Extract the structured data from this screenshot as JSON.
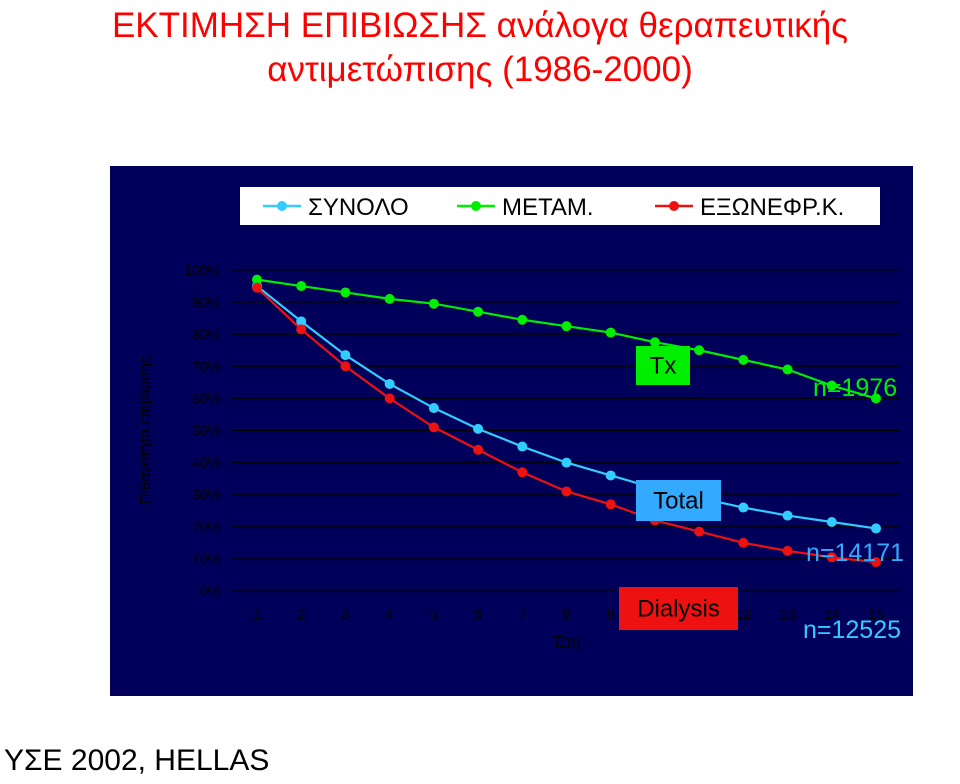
{
  "title_line1": "ΕΚΤΙΜΗΣΗ ΕΠΙΒΙΩΣΗΣ ανάλογα θεραπευτικής",
  "title_line2": "αντιμετώπισης (1986-2000)",
  "footer": "ΥΣΕ 2002, HELLAS",
  "colors": {
    "panel": "#00005a",
    "total": "#33ccff",
    "tx": "#00ee00",
    "dialysis": "#ee1111"
  },
  "chart_data": {
    "type": "line",
    "xlabel": "Έτη",
    "ylabel": "Πιθανότητα επιβίωσης",
    "x": [
      1,
      2,
      3,
      4,
      5,
      6,
      7,
      8,
      9,
      10,
      11,
      12,
      13,
      14,
      15
    ],
    "x_tick_labels": [
      "1",
      "2",
      "3",
      "4",
      "5",
      "6",
      "7",
      "8",
      "9",
      "10",
      "11",
      "12",
      "13",
      "14",
      "15"
    ],
    "y_tick_labels": [
      "0%",
      "10%",
      "20%",
      "30%",
      "40%",
      "50%",
      "60%",
      "70%",
      "80%",
      "90%",
      "100%"
    ],
    "ylim": [
      0,
      100
    ],
    "legend_position": "top",
    "series": [
      {
        "name": "ΣΥΝΟΛΟ",
        "color": "#33ccff",
        "values": [
          95,
          84,
          73.5,
          64.5,
          57,
          50.5,
          45,
          40,
          36,
          32,
          29,
          26,
          23.5,
          21.5,
          19.5
        ]
      },
      {
        "name": "ΜΕΤΑΜ.",
        "color": "#00ee00",
        "values": [
          97,
          95,
          93,
          91,
          89.5,
          87,
          84.5,
          82.5,
          80.5,
          77.5,
          75,
          72,
          69,
          64,
          60
        ]
      },
      {
        "name": "ΕΞΩΝΕΦΡ.Κ.",
        "color": "#ee1111",
        "values": [
          94.5,
          81.5,
          70,
          60,
          51,
          44,
          37,
          31,
          27,
          22,
          18.5,
          15,
          12.5,
          10.5,
          9
        ]
      }
    ],
    "annotations": [
      {
        "text": "Tx",
        "style": "box",
        "bg": "#00ee00",
        "fg": "#000000"
      },
      {
        "text": "Total",
        "style": "box",
        "bg": "#33aaff",
        "fg": "#000000"
      },
      {
        "text": "Dialysis",
        "style": "box",
        "bg": "#ee1111",
        "fg": "#000000"
      },
      {
        "text": "n=1976",
        "style": "text",
        "fg": "#00ee00"
      },
      {
        "text": "n=14171",
        "style": "text",
        "fg": "#33aaff"
      },
      {
        "text": "n=12525",
        "style": "text",
        "fg": "#33ccff"
      }
    ]
  }
}
